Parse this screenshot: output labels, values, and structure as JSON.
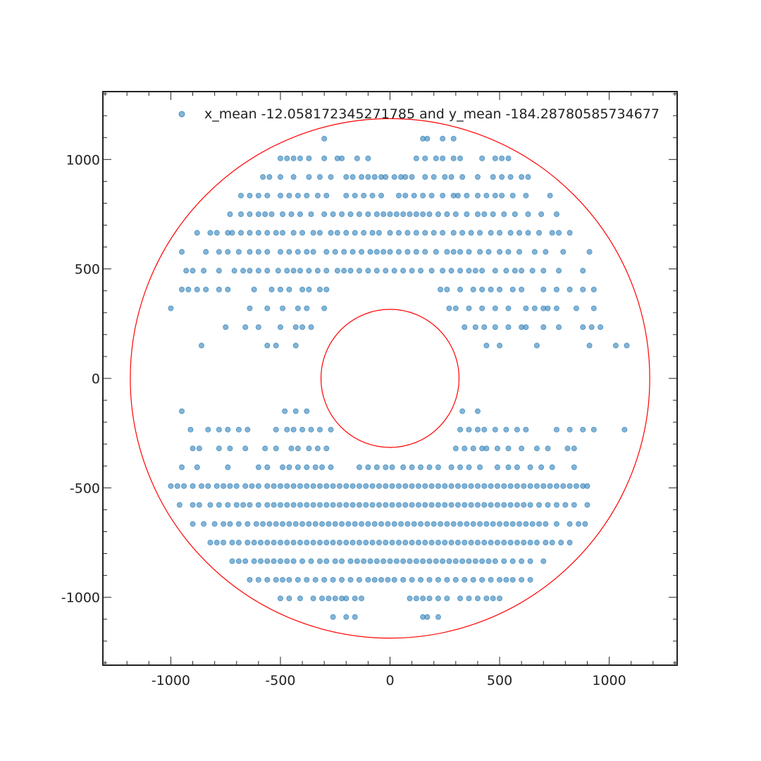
{
  "chart_data": {
    "type": "scatter",
    "title": "",
    "xlabel": "",
    "ylabel": "",
    "xlim": [
      -1310,
      1310
    ],
    "ylim": [
      -1310,
      1310
    ],
    "x_ticks": [
      -1000,
      -500,
      0,
      500,
      1000
    ],
    "y_ticks": [
      1000,
      500,
      0,
      -500,
      -1000
    ],
    "x_tick_labels": [
      "-1000",
      "-500",
      "0",
      "500",
      "1000"
    ],
    "y_tick_labels": [
      "1000",
      "500",
      "0",
      "-500",
      "-1000"
    ],
    "grid": false,
    "legend": {
      "placement": "top-right",
      "label": "x_mean -12.058172345271785 and y_mean -184.28780585734677"
    },
    "colors": {
      "points": "#1f77b4",
      "circles": "#ff0000",
      "axes": "#222222"
    },
    "circles": [
      {
        "name": "outer",
        "cx": 0,
        "cy": 0,
        "r": 1185
      },
      {
        "name": "inner",
        "cx": 0,
        "cy": 0,
        "r": 315
      }
    ],
    "series": [
      {
        "name": "x_mean -12.058172345271785 and y_mean -184.28780585734677",
        "rows": [
          {
            "y": 1095,
            "xs": [
              -300,
              150,
              170,
              240,
              290
            ]
          },
          {
            "y": 1005,
            "xs": [
              -500,
              -470,
              -440,
              -410,
              -370,
              -300,
              -240,
              -220,
              -150,
              -100,
              120,
              160,
              210,
              240,
              290,
              320,
              420,
              480,
              510,
              540
            ]
          },
          {
            "y": 920,
            "xs": [
              -580,
              -550,
              -500,
              -440,
              -370,
              -320,
              -270,
              -200,
              -170,
              -130,
              -100,
              -70,
              -40,
              -20,
              20,
              50,
              70,
              100,
              160,
              200,
              250,
              280,
              330,
              400,
              470,
              510,
              550,
              600,
              630
            ]
          },
          {
            "y": 835,
            "xs": [
              -680,
              -640,
              -600,
              -560,
              -500,
              -460,
              -420,
              -380,
              -330,
              -290,
              -200,
              -160,
              -120,
              -80,
              -40,
              40,
              70,
              110,
              150,
              190,
              240,
              290,
              310,
              350,
              400,
              440,
              480,
              510,
              560,
              620,
              730
            ]
          },
          {
            "y": 750,
            "xs": [
              -730,
              -680,
              -640,
              -600,
              -570,
              -540,
              -490,
              -450,
              -410,
              -360,
              -300,
              -260,
              -220,
              -180,
              -140,
              -100,
              -60,
              -30,
              0,
              30,
              60,
              90,
              120,
              150,
              180,
              220,
              260,
              300,
              350,
              400,
              430,
              470,
              520,
              570,
              630,
              690,
              760
            ]
          },
          {
            "y": 665,
            "xs": [
              -880,
              -820,
              -790,
              -740,
              -720,
              -680,
              -640,
              -600,
              -560,
              -520,
              -490,
              -440,
              -400,
              -350,
              -320,
              -270,
              -240,
              -200,
              -160,
              -120,
              -80,
              -50,
              0,
              40,
              80,
              120,
              160,
              200,
              240,
              290,
              330,
              370,
              410,
              460,
              500,
              550,
              590,
              630,
              680,
              740,
              770,
              820
            ]
          },
          {
            "y": 578,
            "xs": [
              -950,
              -840,
              -780,
              -740,
              -690,
              -640,
              -600,
              -560,
              -500,
              -460,
              -420,
              -380,
              -350,
              -290,
              -250,
              -210,
              -170,
              -130,
              -90,
              -60,
              -30,
              0,
              40,
              80,
              120,
              160,
              210,
              260,
              290,
              320,
              360,
              410,
              450,
              500,
              540,
              590,
              660,
              710,
              790,
              910
            ]
          },
          {
            "y": 492,
            "xs": [
              -930,
              -900,
              -850,
              -780,
              -710,
              -670,
              -640,
              -600,
              -560,
              -510,
              -470,
              -440,
              -410,
              -370,
              -330,
              -290,
              -240,
              -210,
              -180,
              -140,
              -100,
              -60,
              -20,
              20,
              60,
              100,
              140,
              190,
              240,
              280,
              320,
              360,
              390,
              420,
              480,
              530,
              570,
              600,
              650,
              700,
              770,
              880
            ]
          },
          {
            "y": 406,
            "xs": [
              -950,
              -920,
              -880,
              -840,
              -780,
              -740,
              -620,
              -540,
              -500,
              -460,
              -400,
              -370,
              -320,
              -290,
              230,
              260,
              320,
              380,
              420,
              460,
              500,
              560,
              600,
              700,
              760,
              820,
              880,
              930
            ]
          },
          {
            "y": 320,
            "xs": [
              -1000,
              -640,
              -560,
              -490,
              -420,
              -380,
              -300,
              270,
              300,
              360,
              420,
              480,
              540,
              620,
              660,
              700,
              720,
              760,
              850,
              930
            ]
          },
          {
            "y": 234,
            "xs": [
              -750,
              -660,
              -600,
              -500,
              -430,
              -400,
              -360,
              340,
              390,
              430,
              480,
              540,
              600,
              620,
              700,
              770,
              880,
              920,
              960
            ]
          },
          {
            "y": 150,
            "xs": [
              -860,
              -560,
              -520,
              -430,
              440,
              500,
              670,
              910,
              1030,
              1080
            ]
          },
          {
            "y": -150,
            "xs": [
              -950,
              -480,
              -430,
              -380,
              330,
              400
            ]
          },
          {
            "y": -234,
            "xs": [
              -910,
              -830,
              -780,
              -740,
              -690,
              -650,
              -520,
              -470,
              -440,
              -400,
              -360,
              -320,
              -270,
              320,
              360,
              400,
              430,
              480,
              530,
              580,
              620,
              760,
              820,
              880,
              930,
              1070
            ]
          },
          {
            "y": -320,
            "xs": [
              -900,
              -870,
              -780,
              -730,
              -660,
              -570,
              -520,
              -450,
              -420,
              -370,
              -330,
              -290,
              300,
              340,
              380,
              420,
              440,
              490,
              540,
              600,
              670,
              720,
              810,
              840
            ]
          },
          {
            "y": -406,
            "xs": [
              -950,
              -880,
              -740,
              -600,
              -560,
              -490,
              -460,
              -420,
              -380,
              -340,
              -310,
              -270,
              -140,
              -100,
              -60,
              -20,
              10,
              60,
              100,
              140,
              180,
              220,
              280,
              320,
              360,
              410,
              490,
              540,
              580,
              640,
              690,
              740,
              840
            ]
          },
          {
            "y": -492,
            "xs": [
              -1000,
              -970,
              -940,
              -900,
              -860,
              -830,
              -790,
              -760,
              -730,
              -700,
              -660,
              -630,
              -600,
              -560,
              -530,
              -500,
              -470,
              -440,
              -410,
              -380,
              -350,
              -320,
              -290,
              -260,
              -230,
              -200,
              -170,
              -140,
              -110,
              -80,
              -50,
              -20,
              10,
              40,
              70,
              100,
              130,
              160,
              190,
              220,
              250,
              280,
              310,
              340,
              370,
              400,
              430,
              460,
              490,
              520,
              550,
              580,
              610,
              640,
              670,
              700,
              730,
              760,
              790,
              820,
              850,
              880,
              900
            ]
          },
          {
            "y": -578,
            "xs": [
              -960,
              -900,
              -870,
              -820,
              -780,
              -740,
              -700,
              -670,
              -640,
              -600,
              -560,
              -530,
              -500,
              -470,
              -440,
              -410,
              -380,
              -350,
              -320,
              -290,
              -260,
              -230,
              -200,
              -170,
              -140,
              -110,
              -80,
              -50,
              -20,
              10,
              40,
              70,
              100,
              130,
              160,
              190,
              220,
              250,
              280,
              310,
              340,
              370,
              400,
              430,
              460,
              490,
              520,
              550,
              580,
              610,
              640,
              680,
              720,
              760,
              800,
              840,
              900
            ]
          },
          {
            "y": -665,
            "xs": [
              -900,
              -850,
              -800,
              -760,
              -730,
              -690,
              -650,
              -610,
              -580,
              -550,
              -520,
              -490,
              -460,
              -430,
              -400,
              -370,
              -340,
              -310,
              -280,
              -250,
              -220,
              -190,
              -160,
              -130,
              -100,
              -70,
              -40,
              -10,
              20,
              50,
              80,
              110,
              140,
              170,
              200,
              230,
              260,
              290,
              320,
              350,
              380,
              410,
              440,
              470,
              500,
              530,
              560,
              590,
              620,
              650,
              680,
              710,
              760,
              820,
              860,
              890
            ]
          },
          {
            "y": -750,
            "xs": [
              -820,
              -790,
              -760,
              -720,
              -690,
              -650,
              -620,
              -590,
              -560,
              -530,
              -500,
              -470,
              -440,
              -410,
              -380,
              -350,
              -320,
              -290,
              -260,
              -230,
              -200,
              -170,
              -140,
              -110,
              -80,
              -50,
              -20,
              10,
              40,
              70,
              100,
              130,
              160,
              190,
              220,
              250,
              280,
              310,
              340,
              370,
              400,
              430,
              460,
              490,
              520,
              550,
              580,
              610,
              640,
              670,
              710,
              740,
              780,
              820
            ]
          },
          {
            "y": -835,
            "xs": [
              -720,
              -690,
              -660,
              -620,
              -590,
              -560,
              -530,
              -500,
              -470,
              -440,
              -400,
              -360,
              -320,
              -290,
              -250,
              -220,
              -180,
              -150,
              -120,
              -90,
              -60,
              -30,
              0,
              30,
              60,
              90,
              120,
              150,
              180,
              210,
              240,
              270,
              300,
              330,
              360,
              390,
              420,
              450,
              480,
              520,
              560,
              600,
              640,
              700
            ]
          },
          {
            "y": -920,
            "xs": [
              -640,
              -600,
              -560,
              -520,
              -490,
              -460,
              -420,
              -380,
              -340,
              -300,
              -260,
              -220,
              -180,
              -140,
              -100,
              -70,
              -40,
              -10,
              20,
              60,
              100,
              140,
              180,
              220,
              260,
              300,
              340,
              380,
              420,
              460,
              500,
              530,
              560,
              600,
              640
            ]
          },
          {
            "y": -1005,
            "xs": [
              -500,
              -460,
              -410,
              -350,
              -310,
              -280,
              -250,
              -220,
              -200,
              -160,
              -130,
              90,
              120,
              150,
              180,
              220,
              260,
              320,
              360,
              400,
              440,
              470,
              500
            ]
          },
          {
            "y": -1090,
            "xs": [
              -260,
              -200,
              -160,
              150,
              170,
              220
            ]
          }
        ]
      }
    ]
  }
}
